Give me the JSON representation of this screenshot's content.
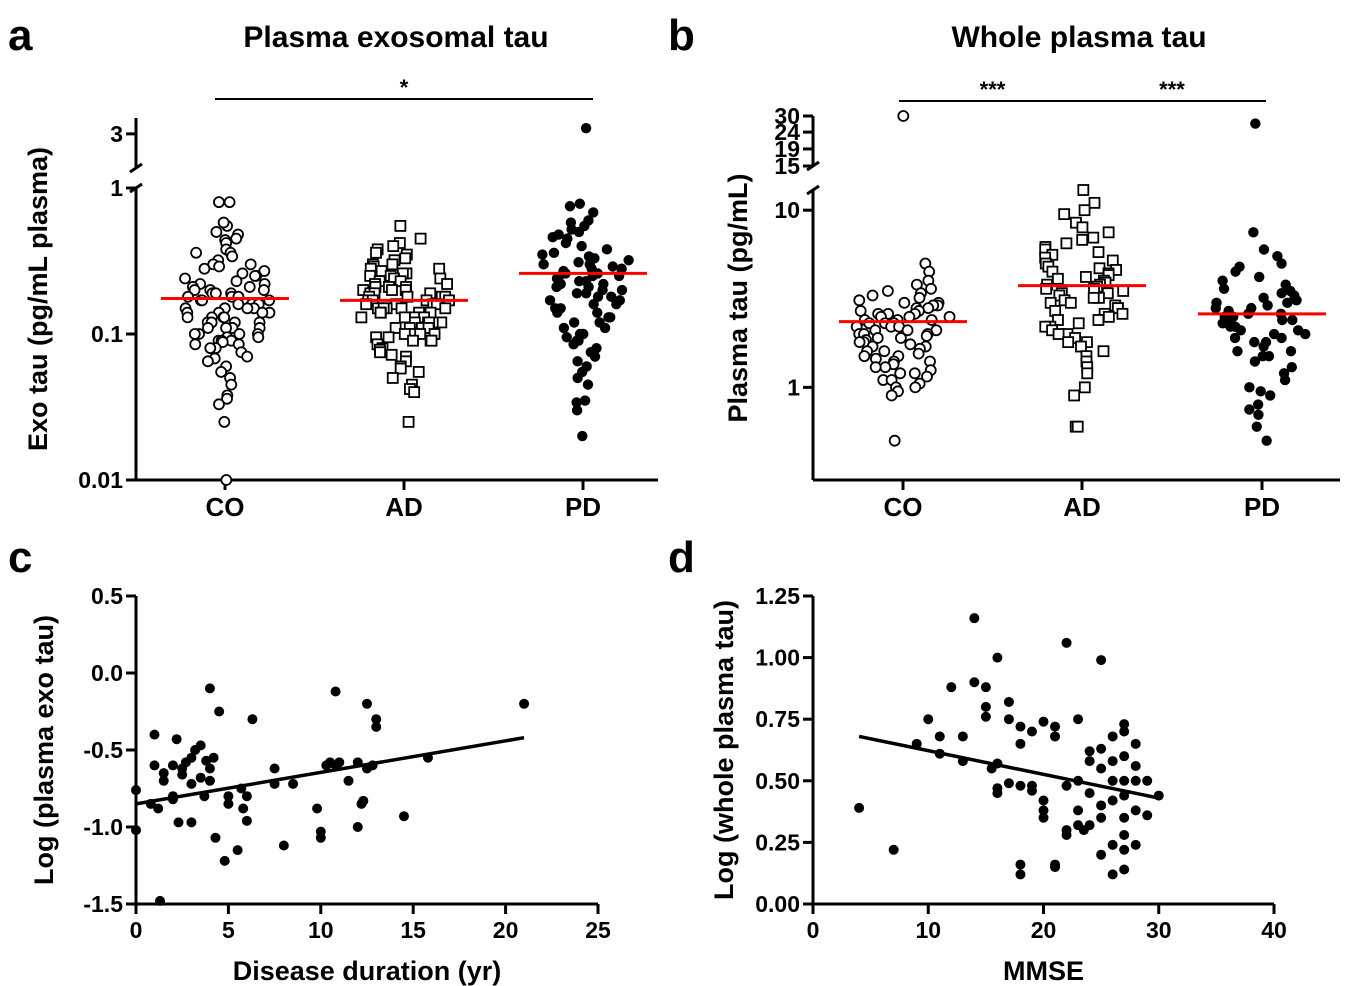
{
  "chart_data": [
    {
      "panel": "a",
      "type": "scatter",
      "title": "Plasma exosomal tau",
      "xlabel": "",
      "ylabel": "Exo tau (pg/mL plasma)",
      "y_scale": "log",
      "y_break": true,
      "ylim": [
        0.01,
        1
      ],
      "ylim_upper_segment": [
        1,
        5
      ],
      "y_ticks": [
        "0.01",
        "0.1",
        "1",
        "3"
      ],
      "y_tick_values": [
        0.01,
        0.1,
        1,
        3
      ],
      "categories": [
        "CO",
        "AD",
        "PD"
      ],
      "series": [
        {
          "category": "CO",
          "marker": "open-circle",
          "mean": 0.175,
          "values": [
            0.8,
            0.8,
            0.55,
            0.58,
            0.5,
            0.48,
            0.45,
            0.44,
            0.42,
            0.38,
            0.36,
            0.36,
            0.34,
            0.32,
            0.3,
            0.3,
            0.29,
            0.28,
            0.27,
            0.26,
            0.25,
            0.25,
            0.24,
            0.23,
            0.22,
            0.22,
            0.21,
            0.21,
            0.2,
            0.2,
            0.2,
            0.19,
            0.19,
            0.19,
            0.18,
            0.18,
            0.18,
            0.17,
            0.17,
            0.17,
            0.16,
            0.16,
            0.16,
            0.15,
            0.15,
            0.15,
            0.15,
            0.14,
            0.14,
            0.14,
            0.14,
            0.13,
            0.13,
            0.13,
            0.13,
            0.12,
            0.12,
            0.12,
            0.12,
            0.11,
            0.11,
            0.11,
            0.11,
            0.1,
            0.1,
            0.1,
            0.1,
            0.095,
            0.095,
            0.09,
            0.09,
            0.09,
            0.088,
            0.085,
            0.085,
            0.08,
            0.08,
            0.075,
            0.07,
            0.068,
            0.065,
            0.06,
            0.055,
            0.05,
            0.045,
            0.038,
            0.036,
            0.033,
            0.025,
            0.01
          ]
        },
        {
          "category": "AD",
          "marker": "open-square",
          "mean": 0.17,
          "values": [
            0.55,
            0.45,
            0.42,
            0.4,
            0.38,
            0.36,
            0.35,
            0.33,
            0.32,
            0.3,
            0.3,
            0.29,
            0.28,
            0.28,
            0.27,
            0.26,
            0.26,
            0.25,
            0.25,
            0.24,
            0.24,
            0.23,
            0.23,
            0.22,
            0.22,
            0.21,
            0.21,
            0.21,
            0.2,
            0.2,
            0.2,
            0.19,
            0.19,
            0.19,
            0.18,
            0.18,
            0.18,
            0.18,
            0.17,
            0.17,
            0.17,
            0.17,
            0.16,
            0.16,
            0.16,
            0.16,
            0.15,
            0.15,
            0.15,
            0.15,
            0.15,
            0.14,
            0.14,
            0.14,
            0.14,
            0.14,
            0.13,
            0.13,
            0.13,
            0.13,
            0.12,
            0.12,
            0.12,
            0.12,
            0.12,
            0.11,
            0.11,
            0.11,
            0.11,
            0.1,
            0.1,
            0.1,
            0.1,
            0.095,
            0.095,
            0.09,
            0.09,
            0.09,
            0.085,
            0.08,
            0.078,
            0.075,
            0.072,
            0.07,
            0.065,
            0.06,
            0.058,
            0.055,
            0.05,
            0.045,
            0.042,
            0.04,
            0.025
          ]
        },
        {
          "category": "PD",
          "marker": "filled-circle",
          "mean": 0.26,
          "values": [
            3.6,
            0.78,
            0.75,
            0.68,
            0.6,
            0.58,
            0.55,
            0.52,
            0.5,
            0.48,
            0.46,
            0.45,
            0.42,
            0.4,
            0.38,
            0.36,
            0.35,
            0.34,
            0.33,
            0.32,
            0.31,
            0.3,
            0.3,
            0.29,
            0.28,
            0.28,
            0.27,
            0.26,
            0.26,
            0.25,
            0.25,
            0.24,
            0.24,
            0.23,
            0.23,
            0.22,
            0.22,
            0.21,
            0.21,
            0.2,
            0.2,
            0.19,
            0.19,
            0.18,
            0.18,
            0.17,
            0.17,
            0.16,
            0.16,
            0.15,
            0.15,
            0.14,
            0.14,
            0.13,
            0.13,
            0.12,
            0.12,
            0.11,
            0.11,
            0.1,
            0.1,
            0.095,
            0.09,
            0.09,
            0.085,
            0.08,
            0.075,
            0.07,
            0.065,
            0.06,
            0.055,
            0.05,
            0.045,
            0.035,
            0.034,
            0.03,
            0.02
          ]
        }
      ],
      "significance": [
        {
          "from": "CO",
          "to": "PD",
          "label": "*"
        }
      ]
    },
    {
      "panel": "b",
      "type": "scatter",
      "title": "Whole plasma tau",
      "xlabel": "",
      "ylabel": "Plasma tau (pg/mL)",
      "y_scale": "log",
      "y_break": true,
      "ylim": [
        0.3,
        13
      ],
      "ylim_upper_segment": [
        15,
        30
      ],
      "y_ticks": [
        "1",
        "10",
        "15",
        "19",
        "24",
        "30"
      ],
      "y_tick_values": [
        1,
        10,
        15,
        19,
        24,
        30
      ],
      "categories": [
        "CO",
        "AD",
        "PD"
      ],
      "series": [
        {
          "category": "CO",
          "marker": "open-circle",
          "mean": 2.35,
          "values": [
            30,
            5,
            4.5,
            4,
            3.8,
            3.6,
            3.5,
            3.4,
            3.3,
            3.2,
            3.1,
            3.0,
            3.0,
            2.9,
            2.9,
            2.8,
            2.8,
            2.7,
            2.7,
            2.6,
            2.6,
            2.6,
            2.5,
            2.5,
            2.5,
            2.4,
            2.4,
            2.4,
            2.3,
            2.3,
            2.3,
            2.2,
            2.2,
            2.2,
            2.1,
            2.1,
            2.1,
            2.0,
            2.0,
            2.0,
            1.95,
            1.9,
            1.9,
            1.85,
            1.8,
            1.8,
            1.75,
            1.7,
            1.7,
            1.65,
            1.6,
            1.6,
            1.55,
            1.5,
            1.5,
            1.45,
            1.4,
            1.4,
            1.35,
            1.3,
            1.3,
            1.25,
            1.2,
            1.2,
            1.15,
            1.1,
            1.1,
            1.05,
            1.0,
            1.0,
            0.95,
            0.9,
            0.5
          ]
        },
        {
          "category": "AD",
          "marker": "open-square",
          "mean": 3.75,
          "values": [
            13,
            11,
            10,
            9.5,
            8.5,
            8,
            7.5,
            7,
            6.8,
            6.5,
            6.2,
            6,
            5.8,
            5.6,
            5.4,
            5.2,
            5,
            4.8,
            4.7,
            4.6,
            4.5,
            4.4,
            4.3,
            4.2,
            4.1,
            4.0,
            3.9,
            3.8,
            3.8,
            3.7,
            3.6,
            3.6,
            3.5,
            3.4,
            3.4,
            3.3,
            3.2,
            3.2,
            3.1,
            3.0,
            3.0,
            2.9,
            2.8,
            2.8,
            2.7,
            2.6,
            2.6,
            2.5,
            2.4,
            2.4,
            2.3,
            2.2,
            2.2,
            2.1,
            2.0,
            2.0,
            1.9,
            1.8,
            1.8,
            1.7,
            1.6,
            1.5,
            1.4,
            1.3,
            1.2,
            1.0,
            0.9,
            0.6,
            0.6
          ]
        },
        {
          "category": "PD",
          "marker": "filled-circle",
          "mean": 2.6,
          "values": [
            27,
            7.5,
            6,
            5.5,
            5,
            4.8,
            4.5,
            4.2,
            4,
            3.8,
            3.6,
            3.5,
            3.4,
            3.3,
            3.2,
            3.1,
            3.0,
            3.0,
            2.9,
            2.8,
            2.8,
            2.7,
            2.6,
            2.6,
            2.5,
            2.5,
            2.4,
            2.4,
            2.3,
            2.3,
            2.2,
            2.2,
            2.1,
            2.1,
            2.0,
            2.0,
            1.9,
            1.9,
            1.8,
            1.8,
            1.7,
            1.6,
            1.6,
            1.5,
            1.5,
            1.4,
            1.3,
            1.2,
            1.1,
            1.0,
            0.95,
            0.9,
            0.8,
            0.75,
            0.7,
            0.6,
            0.5
          ]
        }
      ],
      "significance": [
        {
          "from": "CO",
          "to": "AD",
          "label": "***"
        },
        {
          "from": "AD",
          "to": "PD",
          "label": "***"
        }
      ]
    },
    {
      "panel": "c",
      "type": "scatter",
      "title": "",
      "xlabel": "Disease duration (yr)",
      "ylabel": "Log (plasma exo tau)",
      "xlim": [
        0,
        25
      ],
      "ylim": [
        -1.5,
        0.5
      ],
      "x_ticks": [
        "0",
        "5",
        "10",
        "15",
        "20",
        "25"
      ],
      "x_tick_values": [
        0,
        5,
        10,
        15,
        20,
        25
      ],
      "y_ticks": [
        "-1.5",
        "-1.0",
        "-0.5",
        "0.0",
        "0.5"
      ],
      "y_tick_values": [
        -1.5,
        -1.0,
        -0.5,
        0.0,
        0.5
      ],
      "points": [
        [
          0,
          -0.76
        ],
        [
          0,
          -1.02
        ],
        [
          0.8,
          -0.85
        ],
        [
          1,
          -0.6
        ],
        [
          1,
          -0.4
        ],
        [
          1.2,
          -0.88
        ],
        [
          1.3,
          -1.48
        ],
        [
          1.5,
          -0.65
        ],
        [
          1.5,
          -0.7
        ],
        [
          2,
          -0.6
        ],
        [
          2,
          -0.8
        ],
        [
          2,
          -0.82
        ],
        [
          2.2,
          -0.43
        ],
        [
          2.3,
          -0.97
        ],
        [
          2.5,
          -0.62
        ],
        [
          2.5,
          -0.66
        ],
        [
          2.7,
          -0.58
        ],
        [
          3,
          -0.72
        ],
        [
          3,
          -0.97
        ],
        [
          3,
          -0.55
        ],
        [
          3.2,
          -0.5
        ],
        [
          3.5,
          -0.68
        ],
        [
          3.5,
          -0.47
        ],
        [
          3.7,
          -0.8
        ],
        [
          3.8,
          -0.57
        ],
        [
          4,
          -0.1
        ],
        [
          4,
          -0.7
        ],
        [
          4,
          -0.62
        ],
        [
          4.2,
          -0.55
        ],
        [
          4.3,
          -1.07
        ],
        [
          4.5,
          -0.25
        ],
        [
          4.8,
          -1.22
        ],
        [
          5,
          -0.8
        ],
        [
          5,
          -0.85
        ],
        [
          5.5,
          -1.15
        ],
        [
          5.7,
          -0.75
        ],
        [
          5.8,
          -0.88
        ],
        [
          6,
          -0.8
        ],
        [
          6,
          -0.96
        ],
        [
          6.3,
          -0.3
        ],
        [
          7.5,
          -0.62
        ],
        [
          7.5,
          -0.72
        ],
        [
          8,
          -1.12
        ],
        [
          8.5,
          -0.72
        ],
        [
          9.8,
          -0.88
        ],
        [
          10,
          -1.03
        ],
        [
          10,
          -1.07
        ],
        [
          10.3,
          -0.6
        ],
        [
          10.5,
          -0.58
        ],
        [
          10.8,
          -0.12
        ],
        [
          10.8,
          -0.6
        ],
        [
          11,
          -0.58
        ],
        [
          11.5,
          -0.7
        ],
        [
          12,
          -1.0
        ],
        [
          12,
          -0.58
        ],
        [
          12.2,
          -0.85
        ],
        [
          12.3,
          -0.83
        ],
        [
          12.5,
          -0.2
        ],
        [
          12.5,
          -0.62
        ],
        [
          12.8,
          -0.6
        ],
        [
          13,
          -0.35
        ],
        [
          13,
          -0.3
        ],
        [
          14.5,
          -0.93
        ],
        [
          15.8,
          -0.55
        ],
        [
          21,
          -0.2
        ]
      ],
      "fit_line": {
        "x": [
          0,
          21
        ],
        "y": [
          -0.85,
          -0.42
        ]
      }
    },
    {
      "panel": "d",
      "type": "scatter",
      "title": "",
      "xlabel": "MMSE",
      "ylabel": "Log (whole plasma tau)",
      "xlim": [
        0,
        40
      ],
      "ylim": [
        0,
        1.25
      ],
      "x_ticks": [
        "0",
        "10",
        "20",
        "30",
        "40"
      ],
      "x_tick_values": [
        0,
        10,
        20,
        30,
        40
      ],
      "y_ticks": [
        "0.00",
        "0.25",
        "0.50",
        "0.75",
        "1.00",
        "1.25"
      ],
      "y_tick_values": [
        0,
        0.25,
        0.5,
        0.75,
        1.0,
        1.25
      ],
      "points": [
        [
          4,
          0.39
        ],
        [
          7,
          0.22
        ],
        [
          9,
          0.65
        ],
        [
          10,
          0.75
        ],
        [
          11,
          0.68
        ],
        [
          11,
          0.61
        ],
        [
          12,
          0.88
        ],
        [
          13,
          0.68
        ],
        [
          13,
          0.58
        ],
        [
          14,
          1.16
        ],
        [
          14,
          0.9
        ],
        [
          15,
          0.88
        ],
        [
          15,
          0.8
        ],
        [
          15,
          0.76
        ],
        [
          15.5,
          0.55
        ],
        [
          16,
          1.0
        ],
        [
          16,
          0.57
        ],
        [
          16,
          0.47
        ],
        [
          16,
          0.45
        ],
        [
          17,
          0.82
        ],
        [
          17,
          0.75
        ],
        [
          17,
          0.49
        ],
        [
          18,
          0.72
        ],
        [
          18,
          0.65
        ],
        [
          18,
          0.48
        ],
        [
          18,
          0.16
        ],
        [
          18,
          0.12
        ],
        [
          19,
          0.7
        ],
        [
          19,
          0.48
        ],
        [
          19,
          0.46
        ],
        [
          20,
          0.74
        ],
        [
          20,
          0.42
        ],
        [
          20,
          0.35
        ],
        [
          20,
          0.38
        ],
        [
          21,
          0.72
        ],
        [
          21,
          0.68
        ],
        [
          21,
          0.16
        ],
        [
          21,
          0.15
        ],
        [
          22,
          1.06
        ],
        [
          22,
          0.48
        ],
        [
          22,
          0.3
        ],
        [
          22,
          0.28
        ],
        [
          23,
          0.75
        ],
        [
          23,
          0.5
        ],
        [
          23,
          0.38
        ],
        [
          23,
          0.32
        ],
        [
          23.5,
          0.3
        ],
        [
          24,
          0.62
        ],
        [
          24,
          0.58
        ],
        [
          24,
          0.45
        ],
        [
          24,
          0.32
        ],
        [
          25,
          0.99
        ],
        [
          25,
          0.63
        ],
        [
          25,
          0.55
        ],
        [
          25,
          0.4
        ],
        [
          25,
          0.35
        ],
        [
          25,
          0.2
        ],
        [
          26,
          0.68
        ],
        [
          26,
          0.58
        ],
        [
          26,
          0.5
        ],
        [
          26,
          0.42
        ],
        [
          26,
          0.24
        ],
        [
          26,
          0.12
        ],
        [
          27,
          0.73
        ],
        [
          27,
          0.7
        ],
        [
          27,
          0.6
        ],
        [
          27,
          0.5
        ],
        [
          27,
          0.44
        ],
        [
          27,
          0.35
        ],
        [
          27,
          0.28
        ],
        [
          27,
          0.22
        ],
        [
          27,
          0.14
        ],
        [
          28,
          0.65
        ],
        [
          28,
          0.56
        ],
        [
          28,
          0.5
        ],
        [
          28,
          0.38
        ],
        [
          28,
          0.24
        ],
        [
          29,
          0.5
        ],
        [
          29,
          0.36
        ],
        [
          30,
          0.44
        ]
      ],
      "fit_line": {
        "x": [
          4,
          30
        ],
        "y": [
          0.68,
          0.43
        ]
      }
    }
  ]
}
